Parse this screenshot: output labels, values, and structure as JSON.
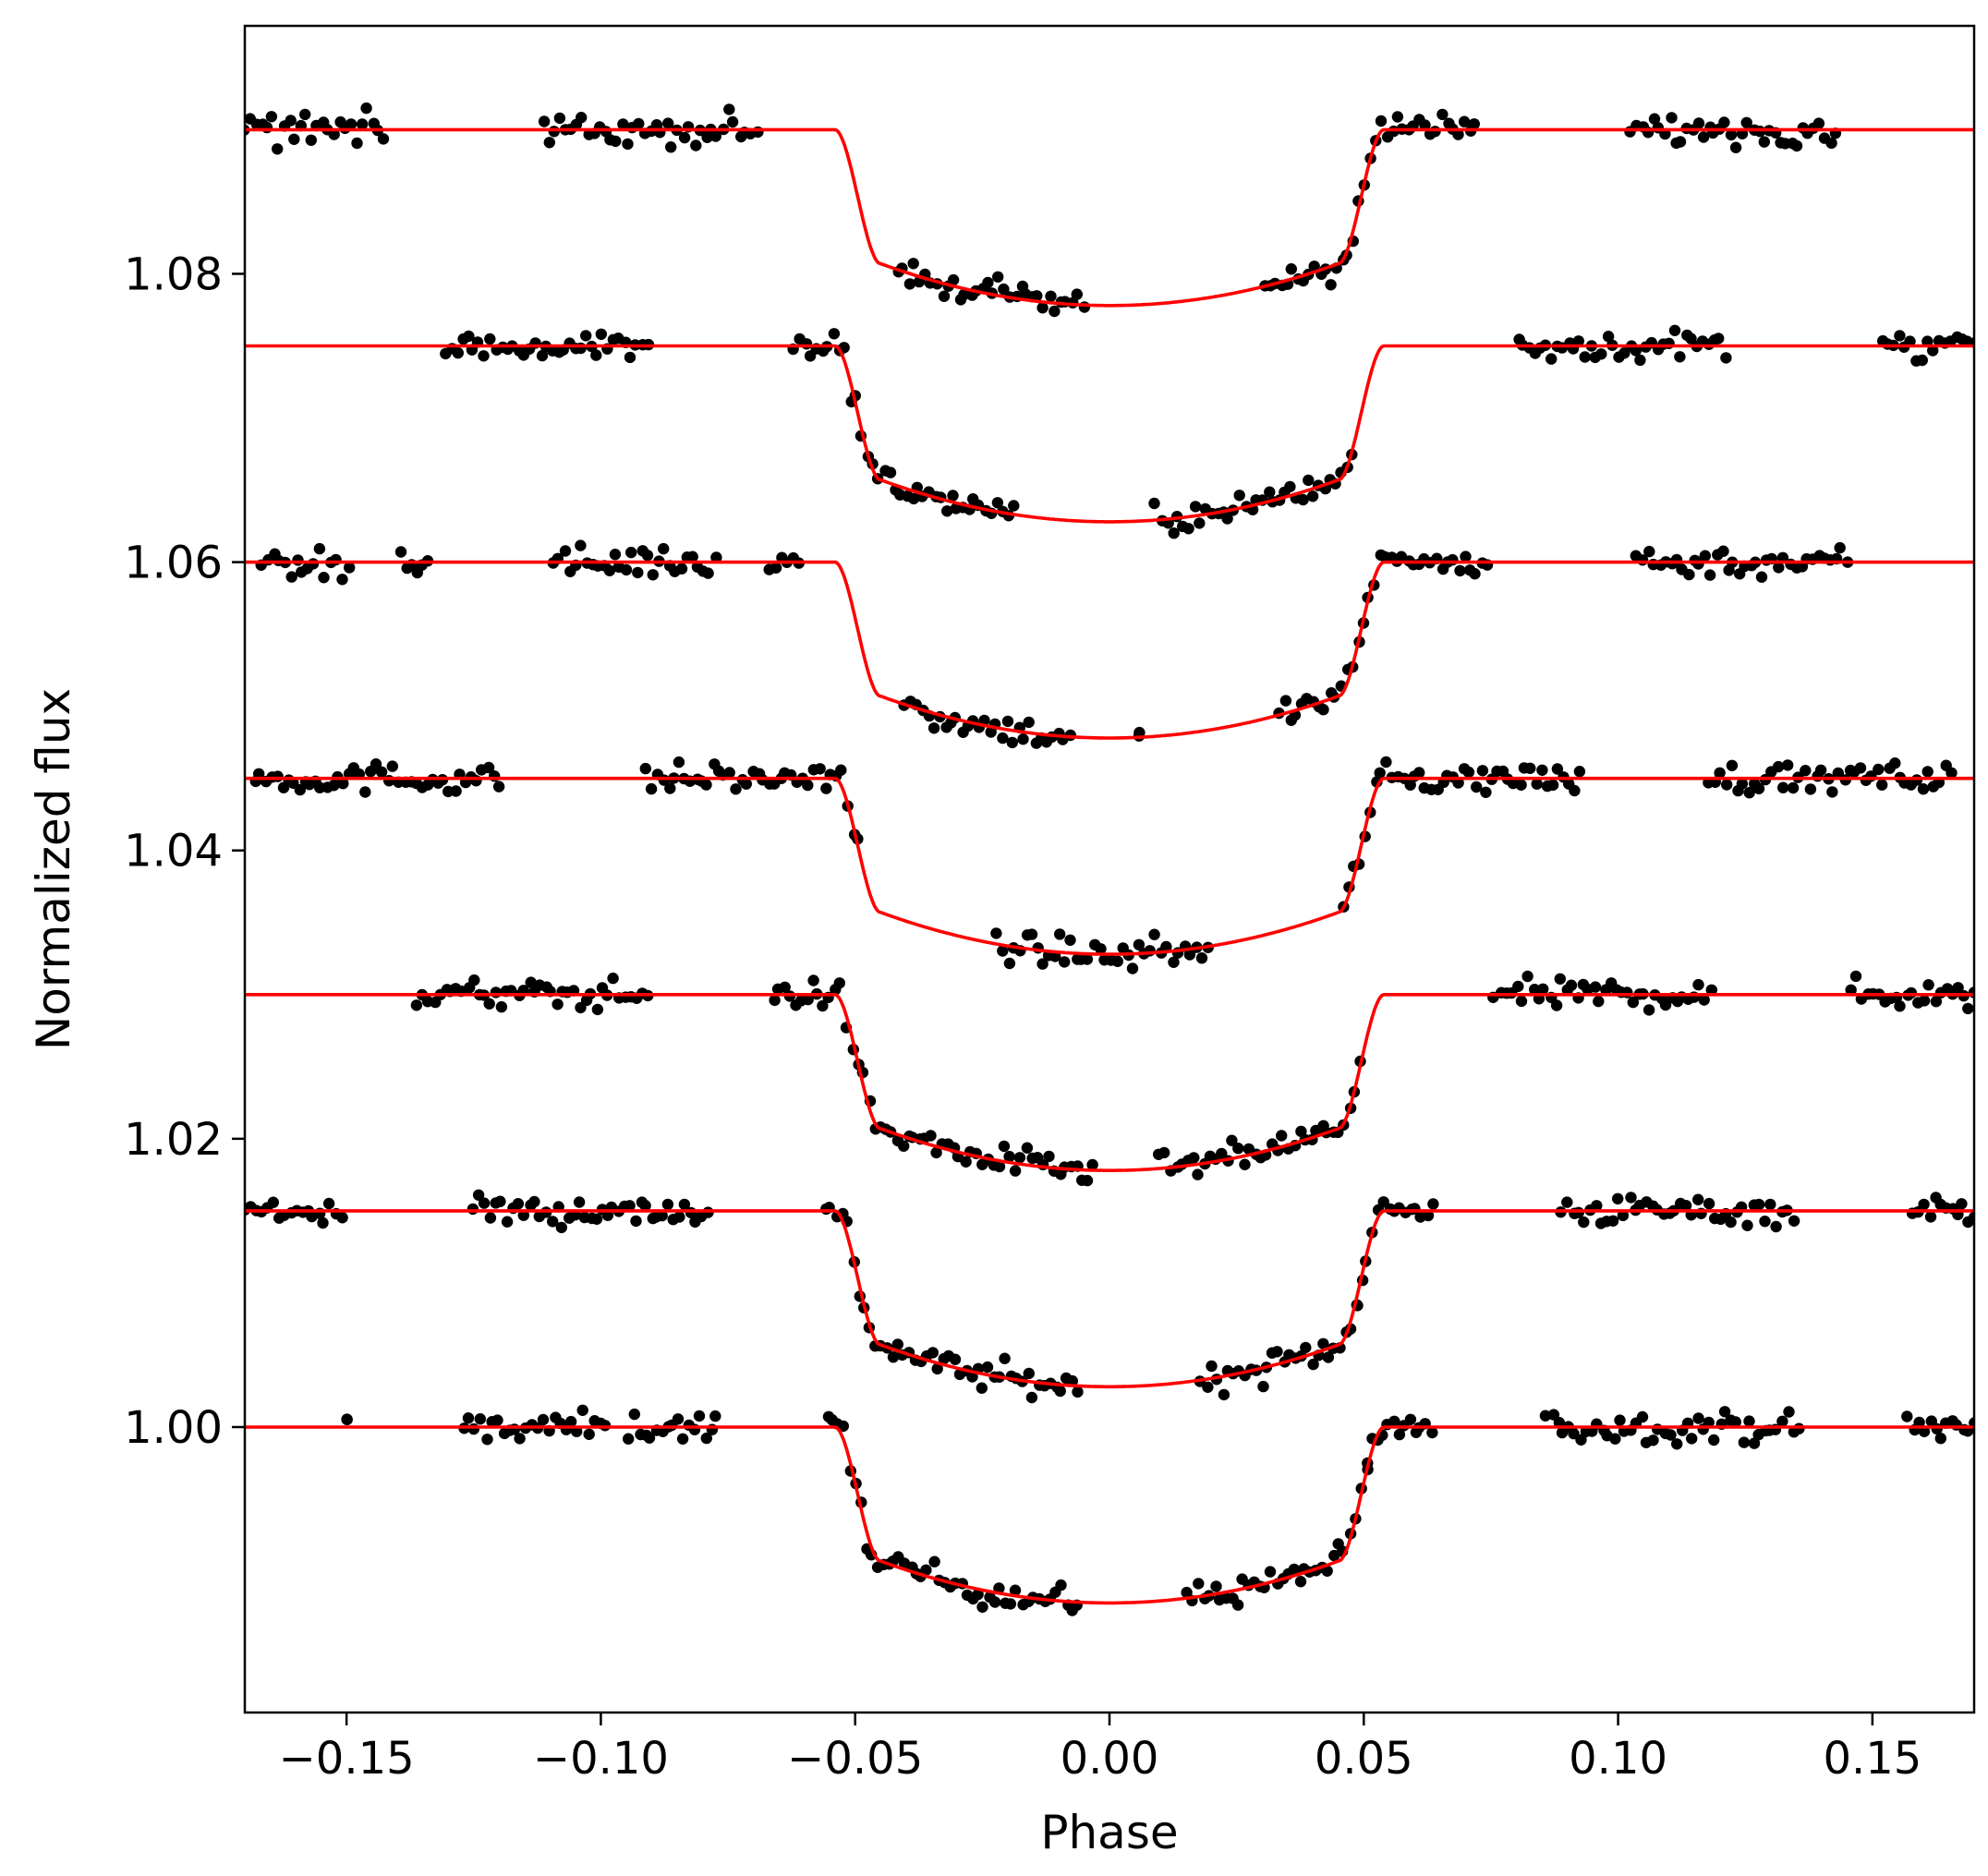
{
  "chart_data": {
    "type": "scatter",
    "title": "",
    "xlabel": "Phase",
    "ylabel": "Normalized flux",
    "xlim": [
      -0.17,
      0.17
    ],
    "ylim": [
      0.9802,
      1.0972
    ],
    "grid": false,
    "legend": "none",
    "x_ticks": [
      -0.15,
      -0.1,
      -0.05,
      0.0,
      0.05,
      0.1,
      0.15
    ],
    "x_tick_labels": [
      "−0.15",
      "−0.10",
      "−0.05",
      "0.00",
      "0.05",
      "0.10",
      "0.15"
    ],
    "y_ticks": [
      1.0,
      1.02,
      1.04,
      1.06,
      1.08
    ],
    "y_tick_labels": [
      "1.00",
      "1.02",
      "1.04",
      "1.06",
      "1.08"
    ],
    "colors": {
      "points": "#000000",
      "model": "#ff0000"
    },
    "model": {
      "depth": 0.0122,
      "total_duration_half_width": 0.054,
      "ingress_duration": 0.009
    },
    "series": [
      {
        "offset": 0.0,
        "segments": [
          [
            -0.15,
            -0.15
          ],
          [
            -0.127,
            -0.099
          ],
          [
            -0.0945,
            -0.0773
          ],
          [
            -0.0555,
            -0.0062
          ],
          [
            0.0153,
            0.0505
          ],
          [
            0.0505,
            0.0632
          ],
          [
            0.086,
            0.1355
          ],
          [
            0.157,
            0.17
          ]
        ]
      },
      {
        "offset": 0.015,
        "segments": [
          [
            -0.17,
            -0.151
          ],
          [
            -0.125,
            -0.079
          ],
          [
            -0.056,
            -0.0061
          ],
          [
            0.018,
            0.0485
          ],
          [
            0.0485,
            0.0635
          ],
          [
            0.089,
            0.1343
          ],
          [
            0.158,
            0.17
          ]
        ]
      },
      {
        "offset": 0.03,
        "segments": [
          [
            -0.136,
            -0.091
          ],
          [
            -0.0661,
            -0.0031
          ],
          [
            0.0099,
            0.0495
          ],
          [
            0.0757,
            0.1182
          ],
          [
            0.1457,
            0.17
          ]
        ]
      },
      {
        "offset": 0.045,
        "segments": [
          [
            -0.1681,
            -0.12
          ],
          [
            -0.0911,
            -0.0493
          ],
          [
            -0.022,
            0.0191
          ],
          [
            0.0458,
            0.0927
          ],
          [
            0.118,
            0.1654
          ]
        ]
      },
      {
        "offset": 0.06,
        "segments": [
          [
            -0.1666,
            -0.1497
          ],
          [
            -0.1393,
            -0.1343
          ],
          [
            -0.1094,
            -0.0775
          ],
          [
            -0.0666,
            -0.0612
          ],
          [
            -0.0401,
            -0.0079
          ],
          [
            0.0057,
            0.0057
          ],
          [
            0.0334,
            0.0742
          ],
          [
            0.1037,
            0.1449
          ]
        ]
      },
      {
        "offset": 0.075,
        "segments": [
          [
            -0.1306,
            -0.0908
          ],
          [
            -0.0619,
            -0.0189
          ],
          [
            0.0091,
            0.0478
          ],
          [
            0.0803,
            0.1211
          ],
          [
            0.152,
            0.17
          ]
        ]
      },
      {
        "offset": 0.09,
        "segments": [
          [
            -0.17,
            -0.1427
          ],
          [
            -0.1113,
            -0.0694
          ],
          [
            -0.0416,
            -0.0052
          ],
          [
            0.0306,
            0.0719
          ],
          [
            0.1026,
            0.1429
          ]
        ]
      }
    ]
  }
}
